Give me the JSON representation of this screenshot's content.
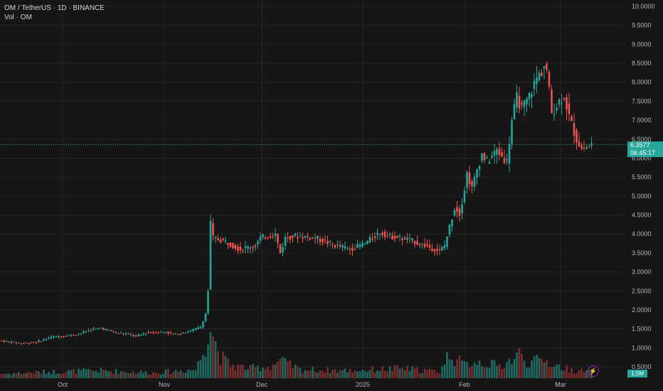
{
  "header": {
    "symbol_line": "OM / TetherUS · 1D · BINANCE",
    "volume_line": "Vol · OM"
  },
  "price_axis": {
    "ticks": [
      "10.0000",
      "9.5000",
      "9.0000",
      "8.5000",
      "8.0000",
      "7.5000",
      "7.0000",
      "6.5000",
      "6.0000",
      "5.5000",
      "5.0000",
      "4.5000",
      "4.0000",
      "3.5000",
      "3.0000",
      "2.5000",
      "2.0000",
      "1.5000",
      "1.0000",
      "0.5000"
    ]
  },
  "time_axis": {
    "labels": [
      "Oct",
      "Nov",
      "Dec",
      "2025",
      "Feb",
      "Mar"
    ]
  },
  "current_price": {
    "value": "6.3577",
    "countdown": "06:45:17",
    "color": "#26a69a"
  },
  "volume_badge": "1.5M",
  "colors": {
    "up": "#26a69a",
    "down": "#ef5350",
    "up_volume": "#1f6b63",
    "down_volume": "#7a2e2d",
    "grid": "#242424",
    "axis_text": "#b2b5be"
  },
  "icons": {
    "alert": "lightning-icon"
  },
  "chart_data": {
    "type": "candlestick",
    "title": "OM / TetherUS · 1D · BINANCE",
    "ylim": [
      0.5,
      10.0
    ],
    "grid": true,
    "price_keyframes": [
      [
        0,
        1.18
      ],
      [
        8,
        1.12
      ],
      [
        14,
        1.15
      ],
      [
        20,
        1.28
      ],
      [
        30,
        1.35
      ],
      [
        36,
        1.48
      ],
      [
        40,
        1.52
      ],
      [
        46,
        1.4
      ],
      [
        52,
        1.35
      ],
      [
        54,
        1.3
      ],
      [
        58,
        1.4
      ],
      [
        66,
        1.42
      ],
      [
        70,
        1.35
      ],
      [
        76,
        1.45
      ],
      [
        80,
        1.55
      ],
      [
        82,
        1.9
      ],
      [
        83,
        2.5
      ],
      [
        84,
        4.3
      ],
      [
        85,
        3.9
      ],
      [
        90,
        3.8
      ],
      [
        96,
        3.6
      ],
      [
        102,
        3.7
      ],
      [
        104,
        3.9
      ],
      [
        110,
        4.0
      ],
      [
        112,
        3.5
      ],
      [
        114,
        3.9
      ],
      [
        118,
        3.95
      ],
      [
        126,
        3.9
      ],
      [
        134,
        3.7
      ],
      [
        140,
        3.6
      ],
      [
        146,
        3.75
      ],
      [
        152,
        4.05
      ],
      [
        156,
        3.95
      ],
      [
        160,
        3.9
      ],
      [
        166,
        3.8
      ],
      [
        170,
        3.7
      ],
      [
        176,
        3.55
      ],
      [
        178,
        3.7
      ],
      [
        180,
        4.2
      ],
      [
        182,
        4.7
      ],
      [
        184,
        4.55
      ],
      [
        186,
        5.2
      ],
      [
        187,
        5.6
      ],
      [
        189,
        5.2
      ],
      [
        191,
        5.7
      ],
      [
        193,
        6.1
      ],
      [
        195,
        5.9
      ],
      [
        199,
        6.2
      ],
      [
        203,
        5.9
      ],
      [
        205,
        7.0
      ],
      [
        207,
        7.6
      ],
      [
        209,
        7.3
      ],
      [
        211,
        7.5
      ],
      [
        213,
        7.8
      ],
      [
        215,
        8.1
      ],
      [
        217,
        8.3
      ],
      [
        218,
        8.45
      ],
      [
        219,
        8.3
      ],
      [
        221,
        7.2
      ],
      [
        224,
        7.5
      ],
      [
        226,
        7.65
      ],
      [
        228,
        7.1
      ],
      [
        231,
        6.5
      ],
      [
        233,
        6.25
      ],
      [
        236,
        6.3
      ],
      [
        237,
        6.36
      ]
    ],
    "volume_keyframes": [
      [
        0,
        0.2
      ],
      [
        20,
        0.3
      ],
      [
        40,
        0.35
      ],
      [
        60,
        0.25
      ],
      [
        78,
        0.4
      ],
      [
        80,
        0.9
      ],
      [
        82,
        1.6
      ],
      [
        83,
        2.3
      ],
      [
        84,
        2.5
      ],
      [
        86,
        1.6
      ],
      [
        88,
        1.0
      ],
      [
        92,
        0.6
      ],
      [
        100,
        0.45
      ],
      [
        108,
        0.55
      ],
      [
        112,
        0.8
      ],
      [
        120,
        0.4
      ],
      [
        140,
        0.35
      ],
      [
        160,
        0.45
      ],
      [
        176,
        0.3
      ],
      [
        178,
        0.7
      ],
      [
        180,
        1.2
      ],
      [
        182,
        0.9
      ],
      [
        186,
        0.6
      ],
      [
        190,
        0.8
      ],
      [
        194,
        0.7
      ],
      [
        200,
        0.55
      ],
      [
        206,
        0.9
      ],
      [
        208,
        1.1
      ],
      [
        212,
        0.7
      ],
      [
        218,
        0.85
      ],
      [
        222,
        0.6
      ],
      [
        230,
        0.35
      ],
      [
        237,
        0.3
      ]
    ],
    "volume_scale_max": 2.6,
    "volume_unit": "M"
  }
}
